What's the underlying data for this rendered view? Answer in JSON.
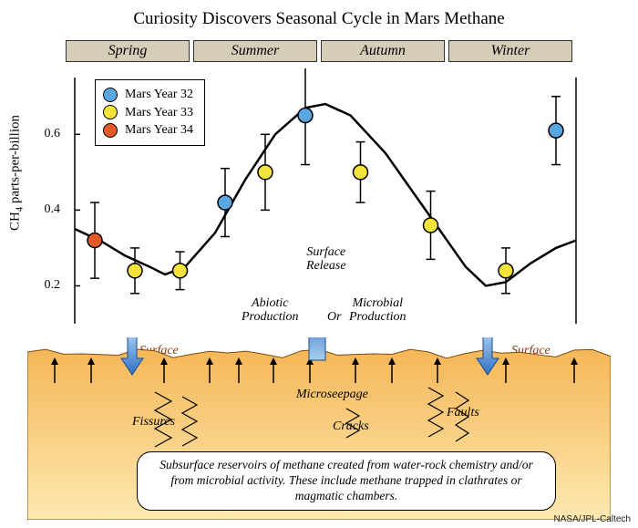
{
  "title": "Curiosity Discovers Seasonal Cycle in Mars Methane",
  "seasons": [
    "Spring",
    "Summer",
    "Autumn",
    "Winter"
  ],
  "season_bg": "#d6cdb9",
  "ylabel_prefix": "CH",
  "ylabel_sub": "4",
  "ylabel_suffix": " parts-per-billion",
  "chart": {
    "type": "scatter_with_errorbars_and_curve",
    "xlim": [
      0,
      1
    ],
    "ylim": [
      0.1,
      0.75
    ],
    "yticks": [
      0.2,
      0.4,
      0.6
    ],
    "background": "#ffffff",
    "axis_color": "#000000",
    "curve_color": "#000000",
    "curve_width": 2.5,
    "curve": [
      [
        0.0,
        0.35
      ],
      [
        0.05,
        0.32
      ],
      [
        0.1,
        0.28
      ],
      [
        0.15,
        0.25
      ],
      [
        0.18,
        0.23
      ],
      [
        0.22,
        0.25
      ],
      [
        0.28,
        0.34
      ],
      [
        0.34,
        0.48
      ],
      [
        0.4,
        0.6
      ],
      [
        0.46,
        0.67
      ],
      [
        0.5,
        0.68
      ],
      [
        0.55,
        0.65
      ],
      [
        0.62,
        0.55
      ],
      [
        0.7,
        0.4
      ],
      [
        0.78,
        0.25
      ],
      [
        0.82,
        0.2
      ],
      [
        0.86,
        0.21
      ],
      [
        0.91,
        0.26
      ],
      [
        0.96,
        0.3
      ],
      [
        1.0,
        0.32
      ]
    ],
    "series": [
      {
        "name": "Mars Year 32",
        "color": "#5aa7e0"
      },
      {
        "name": "Mars Year 33",
        "color": "#f4e33b"
      },
      {
        "name": "Mars Year 34",
        "color": "#e25a2a"
      }
    ],
    "marker_radius": 8,
    "marker_stroke": "#000000",
    "errorbar_color": "#000000",
    "errorbar_width": 1.5,
    "cap_half": 5,
    "points": [
      {
        "s": 2,
        "x": 0.04,
        "y": 0.32,
        "err": 0.1
      },
      {
        "s": 1,
        "x": 0.12,
        "y": 0.24,
        "err": 0.06
      },
      {
        "s": 1,
        "x": 0.21,
        "y": 0.24,
        "err": 0.05
      },
      {
        "s": 0,
        "x": 0.3,
        "y": 0.42,
        "err": 0.09
      },
      {
        "s": 1,
        "x": 0.38,
        "y": 0.5,
        "err": 0.1
      },
      {
        "s": 0,
        "x": 0.46,
        "y": 0.65,
        "err": 0.13
      },
      {
        "s": 1,
        "x": 0.57,
        "y": 0.5,
        "err": 0.08
      },
      {
        "s": 1,
        "x": 0.71,
        "y": 0.36,
        "err": 0.09
      },
      {
        "s": 1,
        "x": 0.86,
        "y": 0.24,
        "err": 0.06
      },
      {
        "s": 0,
        "x": 0.96,
        "y": 0.61,
        "err": 0.09
      }
    ]
  },
  "diagram": {
    "surface_release": "Surface\nRelease",
    "abiotic": "Abiotic\nProduction",
    "or": "Or",
    "microbial": "Microbial\nProduction",
    "surface_uptake": "Surface\nUptake",
    "microseepage": "Microseepage",
    "fissures": "Fissures",
    "cracks": "Cracks",
    "faults": "Faults",
    "caption": "Subsurface reservoirs of methane created from water-rock chemistry and/or from microbial activity. These include methane trapped in clathrates or magmatic chambers.",
    "ground_top": "#f5b757",
    "ground_bottom": "#fde9b1",
    "arrow_blue_top": "#2f6fc4",
    "arrow_blue_bottom": "#a8cef0"
  },
  "credit": "NASA/JPL-Caltech"
}
